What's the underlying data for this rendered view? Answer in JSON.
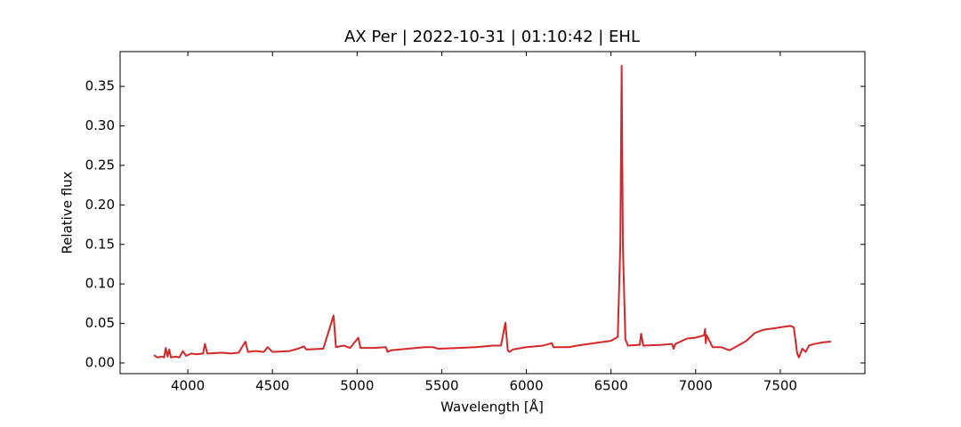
{
  "chart_data": {
    "type": "line",
    "title": "AX Per | 2022-10-31 | 01:10:42 | EHL",
    "xlabel": "Wavelength [Å]",
    "ylabel": "Relative flux",
    "x": [
      3800,
      3820,
      3850,
      3860,
      3870,
      3880,
      3890,
      3900,
      3930,
      3950,
      3970,
      3990,
      4020,
      4050,
      4090,
      4101,
      4115,
      4200,
      4250,
      4300,
      4340,
      4355,
      4400,
      4450,
      4471,
      4500,
      4600,
      4650,
      4686,
      4700,
      4800,
      4861,
      4875,
      4921,
      4959,
      5007,
      5020,
      5100,
      5170,
      5180,
      5200,
      5300,
      5400,
      5450,
      5480,
      5600,
      5700,
      5800,
      5850,
      5876,
      5890,
      5900,
      5920,
      6000,
      6100,
      6150,
      6160,
      6250,
      6300,
      6400,
      6500,
      6540,
      6555,
      6563,
      6570,
      6585,
      6600,
      6670,
      6678,
      6690,
      6800,
      6860,
      6870,
      6880,
      6950,
      7000,
      7050,
      7056,
      7060,
      7065,
      7100,
      7150,
      7200,
      7250,
      7300,
      7350,
      7400,
      7500,
      7560,
      7580,
      7600,
      7610,
      7630,
      7650,
      7670,
      7700,
      7750,
      7800
    ],
    "series": [
      {
        "name": "AX Per",
        "color": "#d62728",
        "values": [
          0.01,
          0.007,
          0.008,
          0.007,
          0.019,
          0.008,
          0.017,
          0.007,
          0.008,
          0.007,
          0.015,
          0.009,
          0.012,
          0.011,
          0.012,
          0.024,
          0.012,
          0.013,
          0.012,
          0.013,
          0.027,
          0.014,
          0.015,
          0.014,
          0.02,
          0.014,
          0.015,
          0.018,
          0.021,
          0.017,
          0.018,
          0.06,
          0.02,
          0.022,
          0.019,
          0.032,
          0.019,
          0.019,
          0.02,
          0.014,
          0.016,
          0.018,
          0.02,
          0.02,
          0.018,
          0.019,
          0.02,
          0.022,
          0.022,
          0.051,
          0.016,
          0.014,
          0.017,
          0.02,
          0.022,
          0.025,
          0.02,
          0.02,
          0.022,
          0.025,
          0.028,
          0.033,
          0.15,
          0.376,
          0.15,
          0.03,
          0.022,
          0.023,
          0.037,
          0.022,
          0.023,
          0.024,
          0.018,
          0.024,
          0.031,
          0.032,
          0.035,
          0.043,
          0.025,
          0.035,
          0.02,
          0.02,
          0.016,
          0.022,
          0.028,
          0.038,
          0.042,
          0.045,
          0.047,
          0.045,
          0.012,
          0.007,
          0.018,
          0.014,
          0.022,
          0.024,
          0.026,
          0.027
        ]
      }
    ],
    "xlim": [
      3600,
      8000
    ],
    "ylim": [
      -0.0135,
      0.394
    ],
    "xticks": [
      4000,
      4500,
      5000,
      5500,
      6000,
      6500,
      7000,
      7500
    ],
    "yticks": [
      {
        "value": 0,
        "label": "0.00"
      },
      0.05,
      {
        "value": 0.1,
        "label": "0.10"
      },
      0.15,
      {
        "value": 0.2,
        "label": "0.20"
      },
      0.25,
      {
        "value": 0.3,
        "label": "0.30"
      },
      0.35
    ]
  }
}
